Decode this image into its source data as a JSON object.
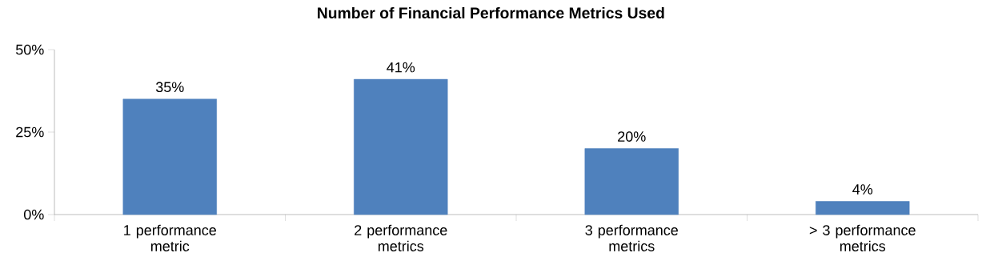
{
  "chart_data": {
    "type": "bar",
    "title": "Number of Financial Performance Metrics Used",
    "categories": [
      "1 performance metric",
      "2 performance metrics",
      "3 performance metrics",
      "> 3 performance metrics"
    ],
    "values": [
      35,
      41,
      20,
      4
    ],
    "value_labels": [
      "35%",
      "41%",
      "20%",
      "4%"
    ],
    "color": "#4f81bd",
    "ylim": [
      0,
      50
    ],
    "yticks": [
      {
        "value": 0,
        "label": "0%"
      },
      {
        "value": 25,
        "label": "25%"
      },
      {
        "value": 50,
        "label": "50%"
      }
    ],
    "grid": false
  }
}
